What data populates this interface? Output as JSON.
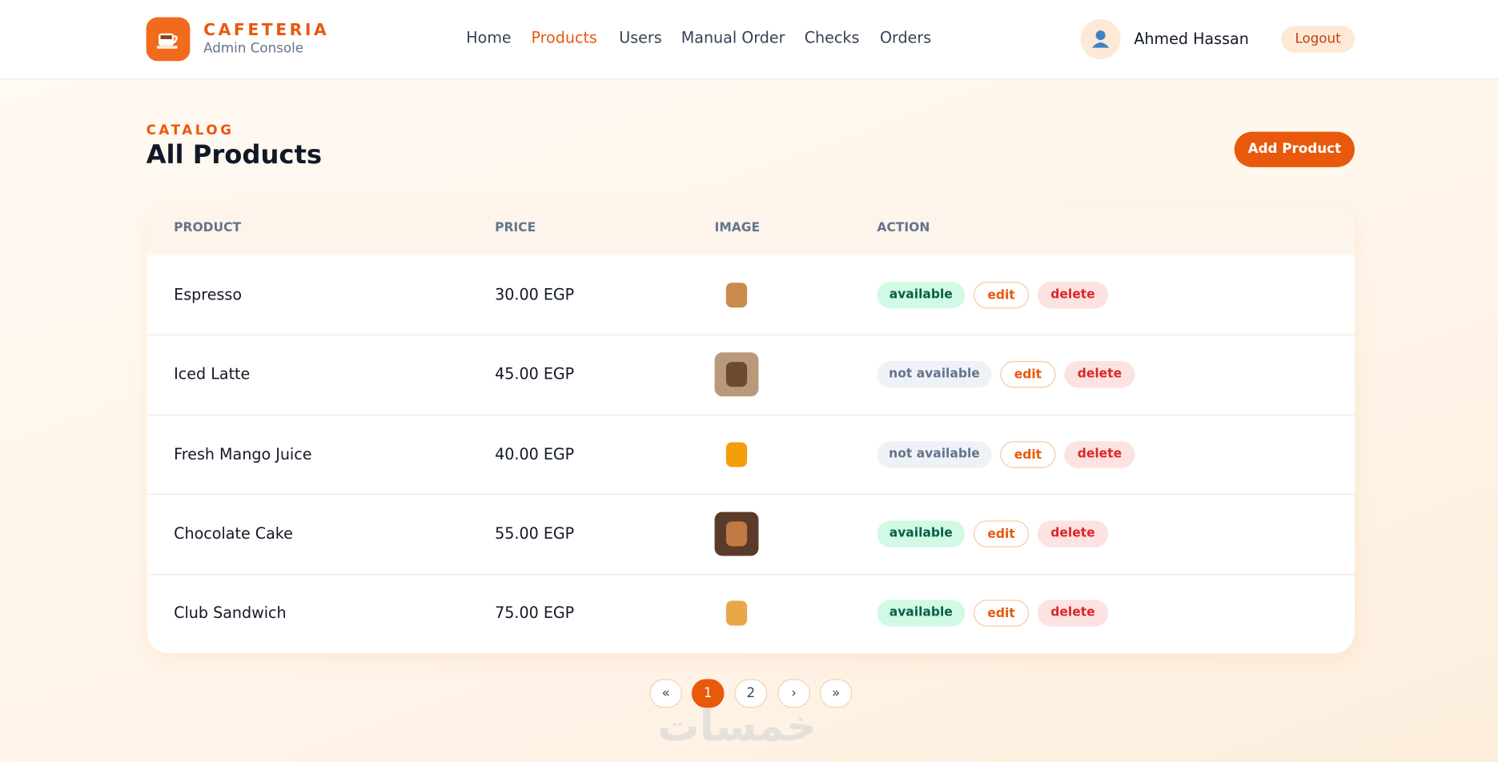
{
  "header": {
    "brand": "CAFETERIA",
    "subtitle": "Admin Console",
    "nav": [
      "Home",
      "Products",
      "Users",
      "Manual Order",
      "Checks",
      "Orders"
    ],
    "active_nav": 1,
    "user": "Ahmed Hassan",
    "logout": "Logout"
  },
  "page": {
    "eyebrow": "CATALOG",
    "title": "All Products",
    "add_button": "Add Product"
  },
  "table": {
    "columns": [
      "PRODUCT",
      "PRICE",
      "IMAGE",
      "ACTION"
    ],
    "rows": [
      {
        "name": "Espresso",
        "price": "30.00 EGP",
        "status": "available",
        "edit": "edit",
        "delete": "delete"
      },
      {
        "name": "Iced Latte",
        "price": "45.00 EGP",
        "status": "not available",
        "edit": "edit",
        "delete": "delete"
      },
      {
        "name": "Fresh Mango Juice",
        "price": "40.00 EGP",
        "status": "not available",
        "edit": "edit",
        "delete": "delete"
      },
      {
        "name": "Chocolate Cake",
        "price": "55.00 EGP",
        "status": "available",
        "edit": "edit",
        "delete": "delete"
      },
      {
        "name": "Club Sandwich",
        "price": "75.00 EGP",
        "status": "available",
        "edit": "edit",
        "delete": "delete"
      }
    ]
  },
  "pagination": {
    "items": [
      "«",
      "1",
      "2",
      "›",
      "»"
    ],
    "active": 1
  },
  "watermark": "خمسات"
}
